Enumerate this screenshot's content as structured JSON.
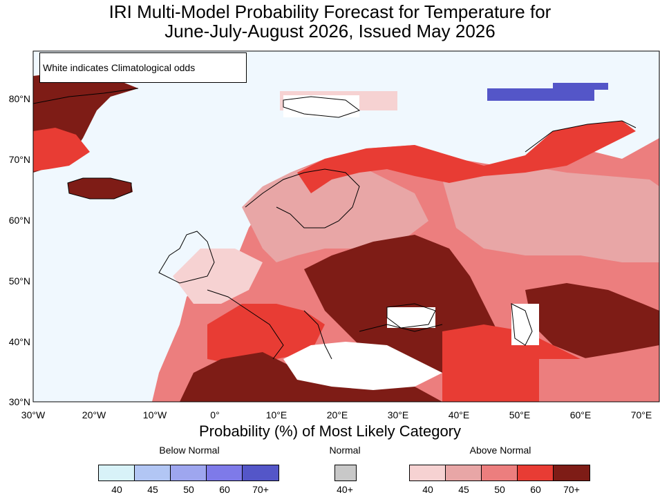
{
  "title_line1": "IRI Multi-Model Probability Forecast for Temperature for",
  "title_line2": "June-July-August 2026, Issued May 2026",
  "note": "White indicates Climatological odds",
  "lat_labels": [
    "80°N",
    "70°N",
    "60°N",
    "50°N",
    "40°N",
    "30°N"
  ],
  "lon_labels": [
    "30°W",
    "20°W",
    "10°W",
    "0°",
    "10°E",
    "20°E",
    "30°E",
    "40°E",
    "50°E",
    "60°E",
    "70°E"
  ],
  "legend": {
    "title": "Probability (%) of Most Likely Category",
    "below": {
      "label": "Below Normal",
      "ticks": [
        "40",
        "45",
        "50",
        "60",
        "70+"
      ],
      "colors": [
        "#d8f2f8",
        "#b2c6f4",
        "#9ea6ef",
        "#7e7ae9",
        "#5456c8"
      ]
    },
    "normal": {
      "label": "Normal",
      "ticks": [
        "40+"
      ],
      "colors": [
        "#c8c8c8"
      ]
    },
    "above": {
      "label": "Above Normal",
      "ticks": [
        "40",
        "45",
        "50",
        "60",
        "70+"
      ],
      "colors": [
        "#f6d2d2",
        "#e8a6a6",
        "#ec7e7e",
        "#e83c34",
        "#7e1c16"
      ]
    }
  },
  "colors": {
    "ocean": "#f0f8fe",
    "climatology": "#ffffff",
    "above_40": "#f6d2d2",
    "above_45": "#e8a6a6",
    "above_50": "#ec7e7e",
    "above_60": "#e83c34",
    "above_70": "#7e1c16",
    "below_70": "#5456c8",
    "below_60": "#7e7ae9",
    "below_45": "#b2c6f4",
    "below_40": "#d8f2f8"
  }
}
